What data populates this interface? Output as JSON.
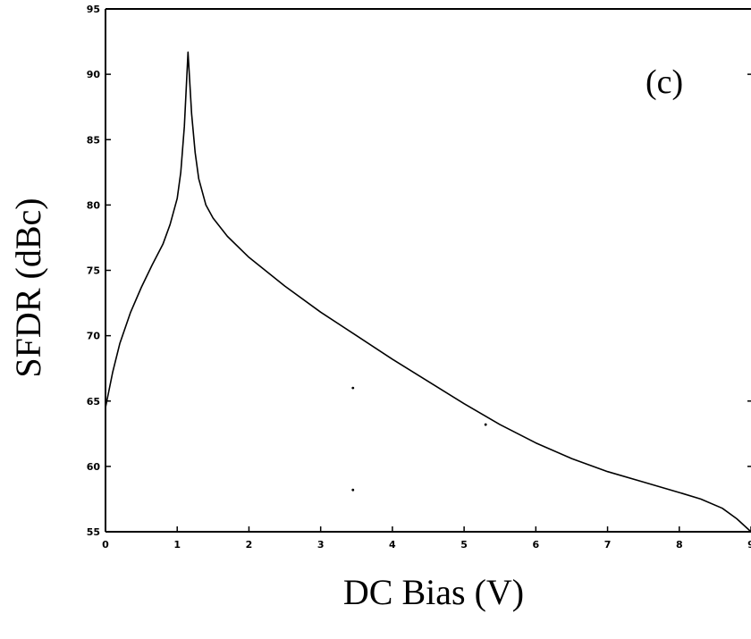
{
  "chart_data": {
    "type": "line",
    "title": "",
    "annotation": "(c)",
    "xlabel": "DC Bias (V)",
    "ylabel": "SFDR (dBc)",
    "xlim": [
      0,
      9
    ],
    "ylim": [
      55,
      95
    ],
    "x_ticks": [
      0,
      1,
      2,
      3,
      4,
      5,
      6,
      7,
      8,
      9
    ],
    "y_ticks": [
      55,
      60,
      65,
      70,
      75,
      80,
      85,
      90,
      95
    ],
    "grid": false,
    "legend": "none",
    "line_color": "#000000",
    "series": [
      {
        "x": [
          0,
          0.1,
          0.2,
          0.35,
          0.5,
          0.65,
          0.8,
          0.9,
          1.0,
          1.05,
          1.1,
          1.15,
          1.2,
          1.25,
          1.3,
          1.4,
          1.5,
          1.7,
          2.0,
          2.5,
          3.0,
          3.5,
          4.0,
          4.5,
          5.0,
          5.5,
          6.0,
          6.5,
          7.0,
          7.5,
          8.0,
          8.3,
          8.6,
          8.8,
          9.0
        ],
        "y": [
          64.5,
          67.2,
          69.4,
          71.8,
          73.7,
          75.4,
          77.0,
          78.5,
          80.5,
          82.5,
          86.0,
          91.7,
          87.0,
          84.0,
          82.0,
          80.0,
          79.0,
          77.6,
          76.0,
          73.8,
          71.8,
          70.0,
          68.2,
          66.5,
          64.8,
          63.2,
          61.8,
          60.6,
          59.6,
          58.8,
          58.0,
          57.5,
          56.8,
          56.0,
          55.0
        ]
      }
    ],
    "stray_points": [
      {
        "x": 3.45,
        "y": 66.0
      },
      {
        "x": 5.3,
        "y": 63.2
      },
      {
        "x": 3.45,
        "y": 58.2
      }
    ]
  }
}
